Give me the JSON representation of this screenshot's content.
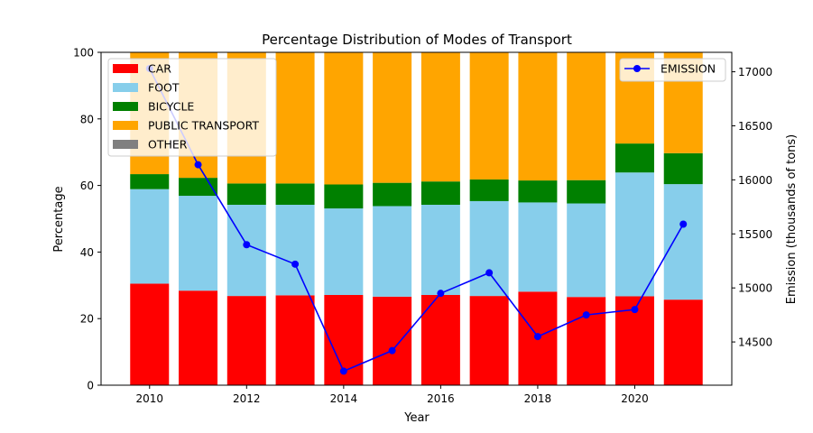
{
  "chart_data": {
    "type": "bar",
    "stacked": true,
    "title": "Percentage Distribution of Modes of Transport",
    "xlabel": "Year",
    "ylabel": "Percentage",
    "y2label": "Emission (thousands of tons)",
    "x": [
      2010,
      2011,
      2012,
      2013,
      2014,
      2015,
      2016,
      2017,
      2018,
      2019,
      2020,
      2021
    ],
    "xticks": [
      "2010",
      "2012",
      "2014",
      "2016",
      "2018",
      "2020"
    ],
    "ylim": [
      0,
      100
    ],
    "yticks": [
      "0",
      "20",
      "40",
      "60",
      "80",
      "100"
    ],
    "y2lim": [
      14100,
      17180
    ],
    "y2ticks": [
      "14500",
      "15000",
      "15500",
      "16000",
      "16500",
      "17000"
    ],
    "xlim": [
      2009,
      2022
    ],
    "series": [
      {
        "name": "CAR",
        "color": "#ff0000",
        "values": [
          30.5,
          28.4,
          26.8,
          27.0,
          27.1,
          26.6,
          27.1,
          26.8,
          28.1,
          26.5,
          26.7,
          25.7
        ]
      },
      {
        "name": "FOOT",
        "color": "#87ceeb",
        "values": [
          28.4,
          28.5,
          27.4,
          27.2,
          26.0,
          27.2,
          27.1,
          28.5,
          26.8,
          28.1,
          37.2,
          34.7
        ]
      },
      {
        "name": "BICYCLE",
        "color": "#008000",
        "values": [
          4.5,
          5.4,
          6.4,
          6.4,
          7.2,
          7.0,
          7.0,
          6.5,
          6.6,
          7.0,
          8.7,
          9.3
        ]
      },
      {
        "name": "PUBLIC TRANSPORT",
        "color": "#ffa500",
        "values": [
          36.6,
          37.7,
          39.4,
          39.4,
          39.7,
          39.2,
          38.8,
          38.2,
          38.5,
          38.4,
          27.4,
          30.3
        ]
      },
      {
        "name": "OTHER",
        "color": "#808080",
        "values": [
          0,
          0,
          0,
          0,
          0,
          0,
          0,
          0,
          0,
          0,
          0,
          0
        ]
      }
    ],
    "line": {
      "name": "EMISSION",
      "color": "#0000ff",
      "values": [
        17030,
        16140,
        15400,
        15220,
        14230,
        14420,
        14950,
        15140,
        14550,
        14750,
        14800,
        15590
      ]
    },
    "legend": {
      "placement": "top-left",
      "line_placement": "top-right"
    },
    "grid": false
  }
}
